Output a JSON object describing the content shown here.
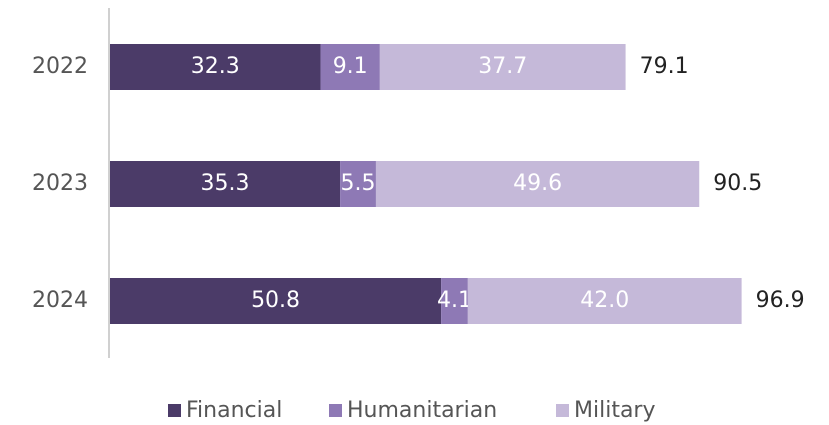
{
  "chart_data": {
    "type": "stacked_bar_horizontal",
    "categories": [
      "2022",
      "2023",
      "2024"
    ],
    "series": [
      {
        "name": "Financial",
        "color": "#4b3b68",
        "values": [
          32.3,
          35.3,
          50.8
        ]
      },
      {
        "name": "Humanitarian",
        "color": "#8e79b5",
        "values": [
          9.1,
          5.5,
          4.1
        ]
      },
      {
        "name": "Military",
        "color": "#c5b9d9",
        "values": [
          37.7,
          49.6,
          42.0
        ],
        "value_labels": [
          "37.7",
          "49.6",
          "42.0"
        ]
      }
    ],
    "totals": [
      79.1,
      90.5,
      96.9
    ],
    "xlim": [
      0,
      110
    ],
    "legend": "bottom"
  }
}
